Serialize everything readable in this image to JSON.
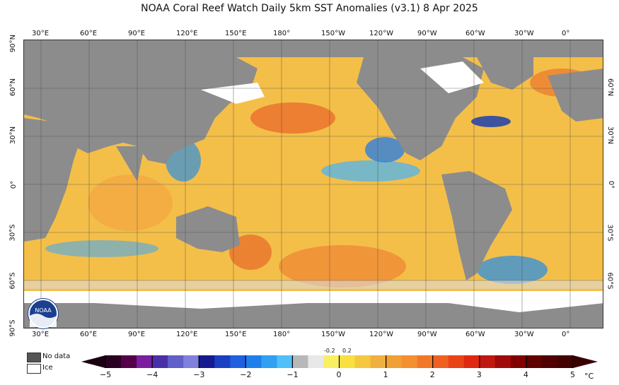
{
  "title": "NOAA Coral Reef Watch Daily 5km SST Anomalies  (v3.1)   8 Apr 2025",
  "lon_labels": [
    "30°E",
    "60°E",
    "90°E",
    "120°E",
    "150°E",
    "180°",
    "150°W",
    "120°W",
    "90°W",
    "60°W",
    "30°W",
    "0°"
  ],
  "lat_labels_left": [
    "90°N",
    "60°N",
    "30°N",
    "0°",
    "30°S",
    "60°S",
    "90°S"
  ],
  "lat_labels_right": [
    "60°N",
    "30°N",
    "0°",
    "30°S",
    "60°S"
  ],
  "legend": {
    "no_data": "No data",
    "ice": "Ice"
  },
  "colorbar": {
    "ticks": [
      "−5",
      "−4",
      "−3",
      "−2",
      "−1",
      "0",
      "1",
      "2",
      "3",
      "4",
      "5"
    ],
    "inner_ticks": [
      "-0.2",
      "0.2"
    ],
    "unit": "°C"
  },
  "logo": "NOAA",
  "colors": {
    "land": "#8c8c8c",
    "ice": "#ffffff",
    "warm": "#f5b84a",
    "cool": "#2f8fe0"
  }
}
